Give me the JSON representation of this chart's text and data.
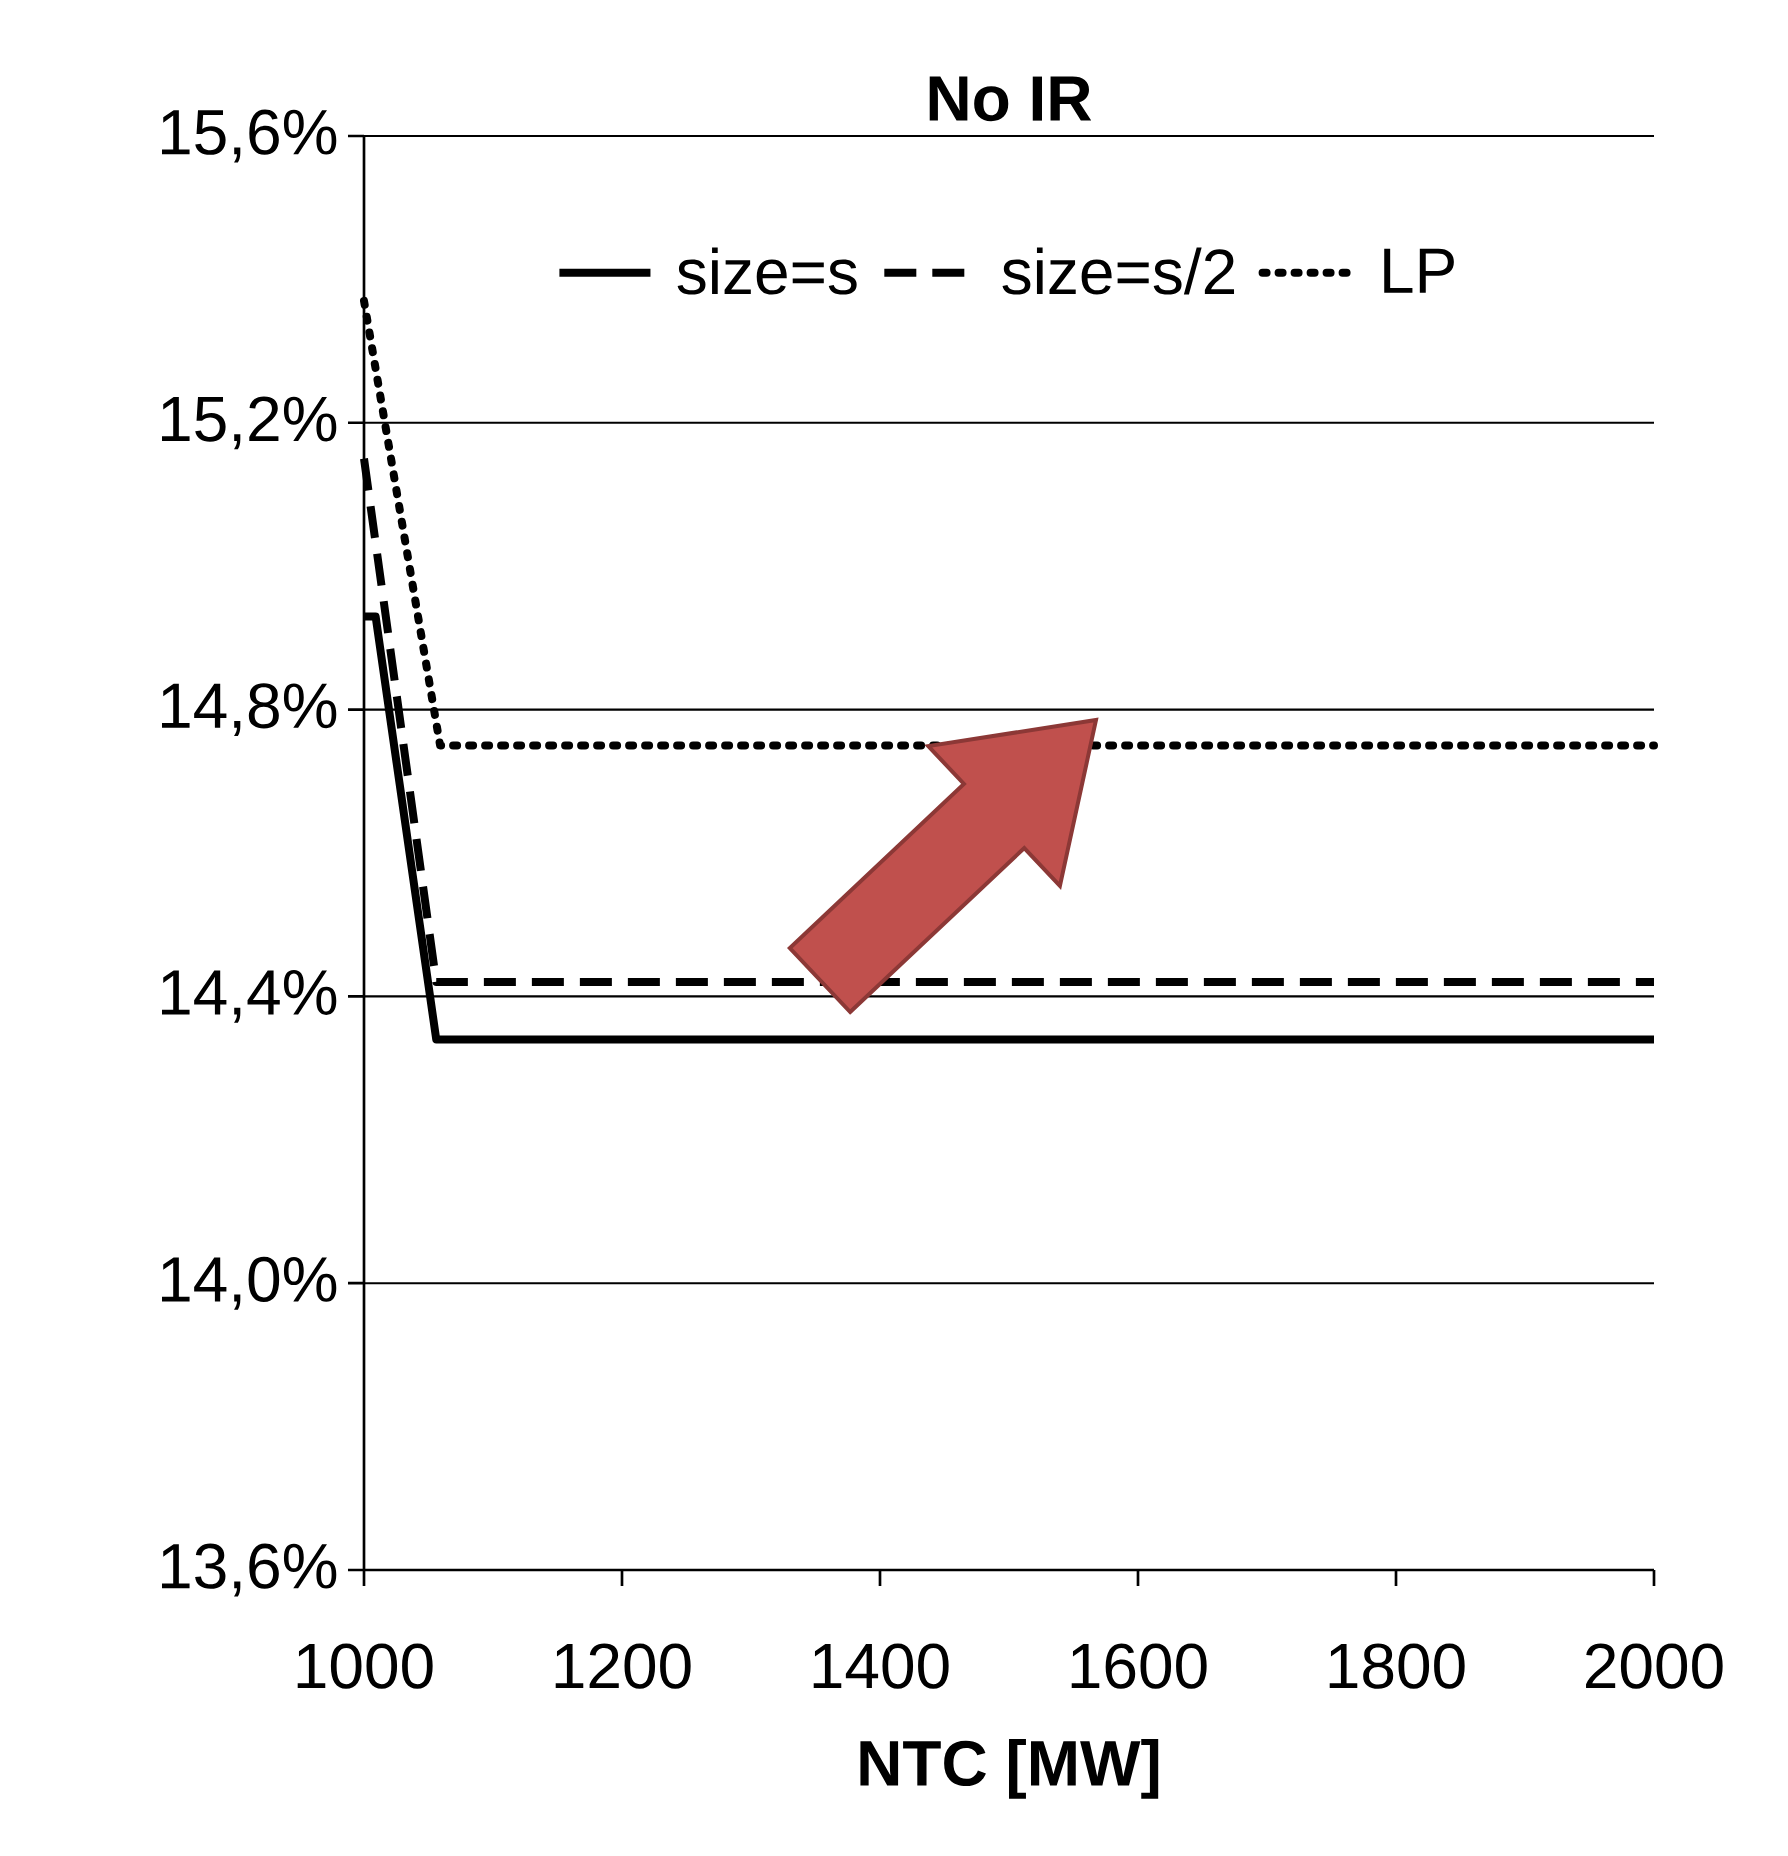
{
  "chart_data": {
    "type": "line",
    "title": "No IR",
    "xlabel": "NTC [MW]",
    "xlim": [
      1000,
      2000
    ],
    "xticks": [
      1000,
      1200,
      1400,
      1600,
      1800,
      2000
    ],
    "ylim": [
      13.6,
      15.6
    ],
    "yticks": [
      {
        "value": 13.6,
        "label": "13,6%"
      },
      {
        "value": 14.0,
        "label": "14,0%"
      },
      {
        "value": 14.4,
        "label": "14,4%"
      },
      {
        "value": 14.8,
        "label": "14,8%"
      },
      {
        "value": 15.2,
        "label": "15,2%"
      },
      {
        "value": 15.6,
        "label": "15,6%"
      }
    ],
    "grid": "y",
    "legend": "top",
    "marker": "none",
    "series": [
      {
        "name": "size=s",
        "color": "#000000",
        "line_style": "solid",
        "x": [
          1000,
          1009,
          1056,
          2000
        ],
        "values": [
          14.93,
          14.93,
          14.34,
          14.34
        ]
      },
      {
        "name": "size=s/2",
        "color": "#000000",
        "line_style": "dashed",
        "x": [
          1000,
          1056,
          2000
        ],
        "values": [
          15.15,
          14.42,
          14.42
        ]
      },
      {
        "name": "LP",
        "color": "#000000",
        "line_style": "dotted",
        "x": [
          1000,
          1059,
          2000
        ],
        "values": [
          15.37,
          14.75,
          14.75
        ]
      }
    ]
  }
}
